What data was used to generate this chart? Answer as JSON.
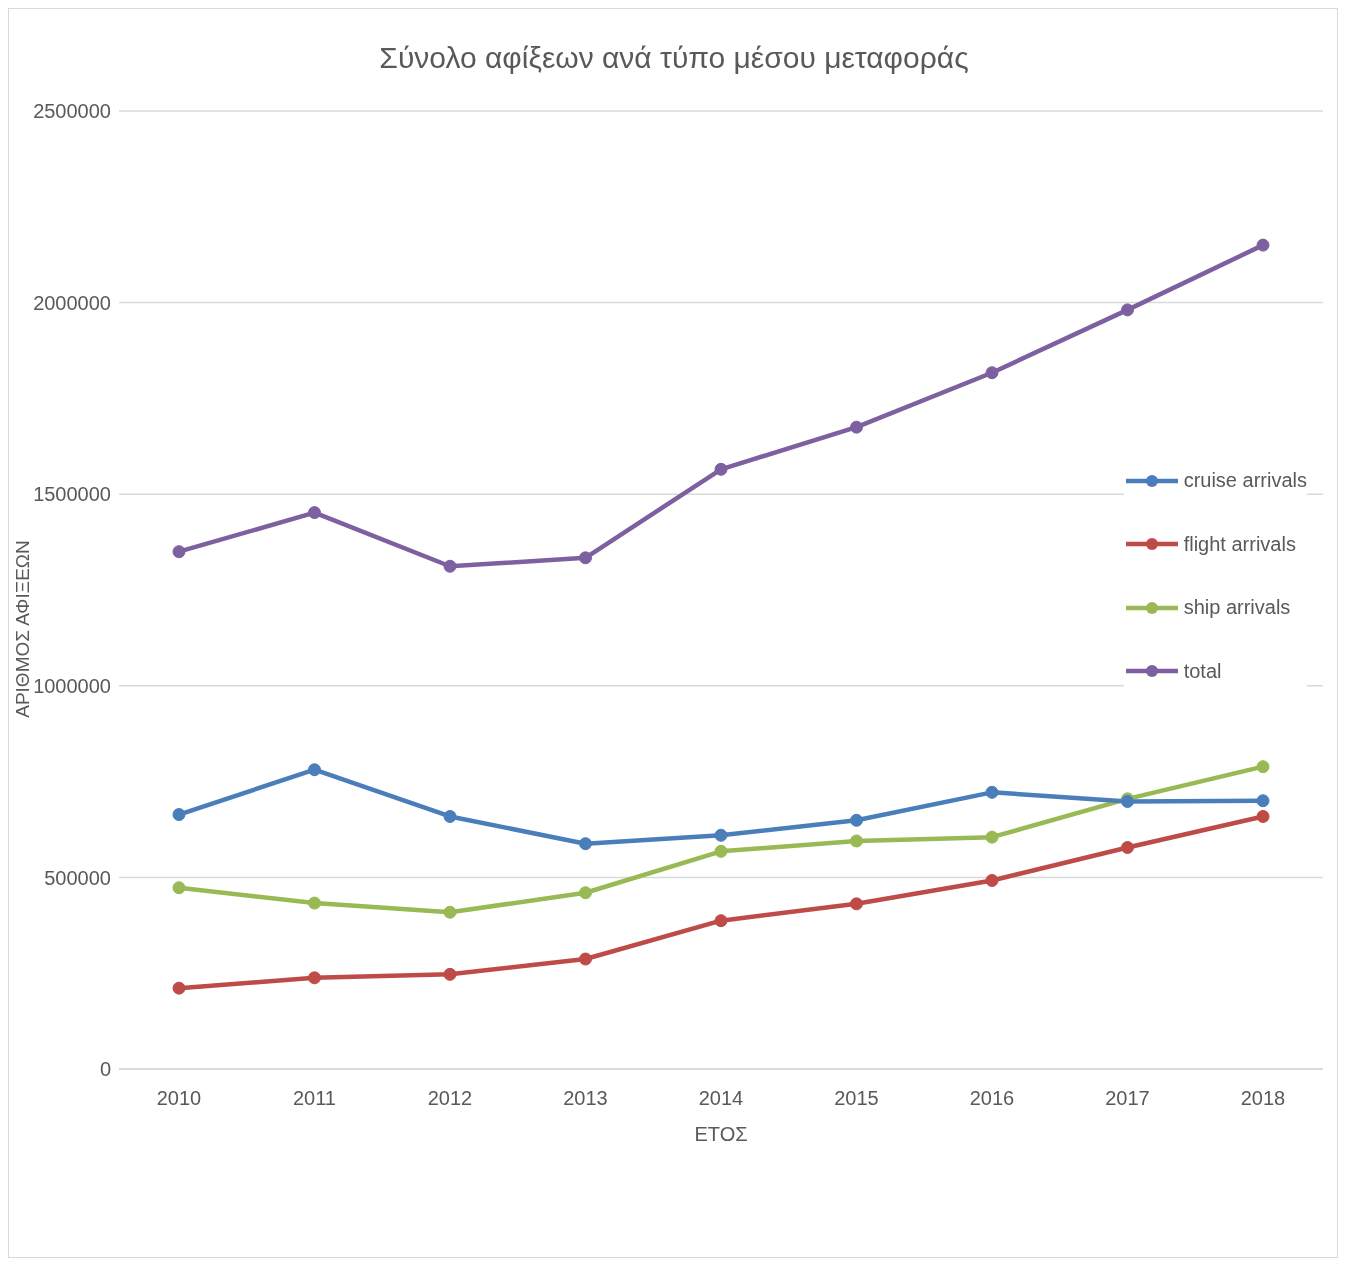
{
  "chart_data": {
    "type": "line",
    "title": "Σύνολο αφίξεων ανά τύπο μέσου μεταφοράς",
    "xlabel": "ΕΤΟΣ",
    "ylabel": "ΑΡΙΘΜΟΣ ΑΦΙΞΕΩΝ",
    "categories": [
      "2010",
      "2011",
      "2012",
      "2013",
      "2014",
      "2015",
      "2016",
      "2017",
      "2018"
    ],
    "series": [
      {
        "name": "cruise arrivals",
        "color": "#4a7ebb",
        "values": [
          664000,
          781000,
          659000,
          588000,
          610000,
          649000,
          722000,
          698000,
          700000
        ]
      },
      {
        "name": "flight arrivals",
        "color": "#be4b48",
        "values": [
          211000,
          238000,
          247000,
          287000,
          387000,
          431000,
          492000,
          578000,
          659000
        ]
      },
      {
        "name": "ship arrivals",
        "color": "#98b954",
        "values": [
          473000,
          433000,
          409000,
          460000,
          568000,
          595000,
          605000,
          705000,
          789000
        ]
      },
      {
        "name": "total",
        "color": "#7d60a0",
        "values": [
          1350000,
          1452000,
          1312000,
          1334000,
          1565000,
          1675000,
          1817000,
          1981000,
          2150000
        ]
      }
    ],
    "ylim": [
      0,
      2500000
    ],
    "yticks": [
      0,
      500000,
      1000000,
      1500000,
      2000000,
      2500000
    ],
    "grid": "y",
    "legend": "right",
    "marker": "circle",
    "line_style": "solid"
  }
}
